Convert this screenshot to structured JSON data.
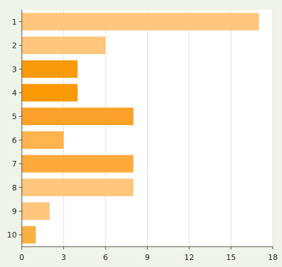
{
  "chart_data": {
    "type": "bar",
    "orientation": "horizontal",
    "categories": [
      "1",
      "2",
      "3",
      "4",
      "5",
      "6",
      "7",
      "8",
      "9",
      "10"
    ],
    "values": [
      17,
      6,
      4,
      4,
      8,
      3,
      8,
      8,
      2,
      1
    ],
    "bar_colors": [
      "#ffc67c",
      "#ffc67c",
      "#f99a0a",
      "#fb9905",
      "#fba12a",
      "#ffb34e",
      "#ffaa3a",
      "#ffc67c",
      "#ffc67c",
      "#fbb042"
    ],
    "xlim": [
      0,
      18
    ],
    "x_ticks": [
      "0",
      "3",
      "6",
      "9",
      "12",
      "15",
      "18"
    ],
    "grid": true,
    "title": "",
    "xlabel": "",
    "ylabel": ""
  }
}
